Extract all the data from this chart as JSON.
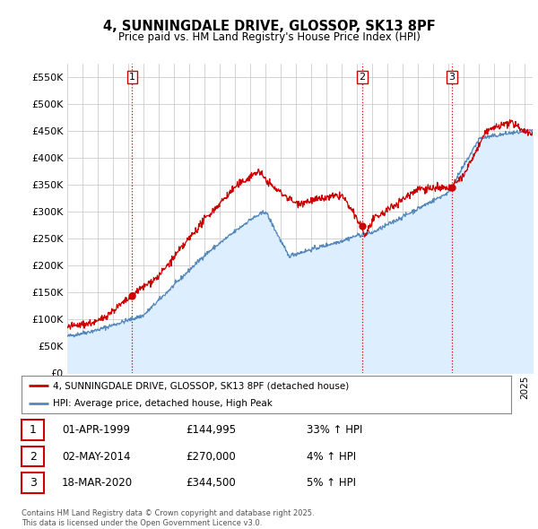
{
  "title": "4, SUNNINGDALE DRIVE, GLOSSOP, SK13 8PF",
  "subtitle": "Price paid vs. HM Land Registry's House Price Index (HPI)",
  "y_ticks": [
    0,
    50000,
    100000,
    150000,
    200000,
    250000,
    300000,
    350000,
    400000,
    450000,
    500000,
    550000
  ],
  "y_tick_labels": [
    "£0",
    "£50K",
    "£100K",
    "£150K",
    "£200K",
    "£250K",
    "£300K",
    "£350K",
    "£400K",
    "£450K",
    "£500K",
    "£550K"
  ],
  "ylim": [
    0,
    575000
  ],
  "xlim": [
    1995.0,
    2025.5
  ],
  "sale_color": "#cc0000",
  "hpi_color": "#5588bb",
  "hpi_fill_color": "#ddeeff",
  "grid_color": "#cccccc",
  "vline_color": "#cc0000",
  "background_color": "#ffffff",
  "transactions": [
    {
      "label": "1",
      "date_str": "01-APR-1999",
      "year": 1999.25,
      "price": 144995,
      "pct": "33%",
      "dir": "↑"
    },
    {
      "label": "2",
      "date_str": "02-MAY-2014",
      "year": 2014.33,
      "price": 270000,
      "pct": "4%",
      "dir": "↑"
    },
    {
      "label": "3",
      "date_str": "18-MAR-2020",
      "year": 2020.21,
      "price": 344500,
      "pct": "5%",
      "dir": "↑"
    }
  ],
  "legend_line1": "4, SUNNINGDALE DRIVE, GLOSSOP, SK13 8PF (detached house)",
  "legend_line2": "HPI: Average price, detached house, High Peak",
  "footer1": "Contains HM Land Registry data © Crown copyright and database right 2025.",
  "footer2": "This data is licensed under the Open Government Licence v3.0."
}
